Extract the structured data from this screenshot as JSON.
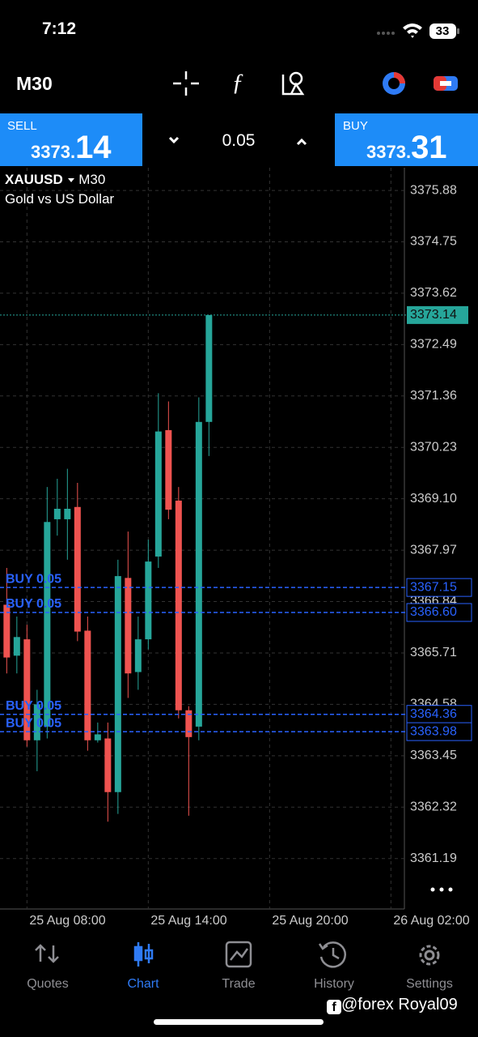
{
  "status_bar": {
    "time": "7:12",
    "battery": "33"
  },
  "toolbar": {
    "timeframe": "M30"
  },
  "trade_bar": {
    "sell_label": "SELL",
    "sell_price_main": "3373.",
    "sell_price_big": "14",
    "lot": "0.05",
    "buy_label": "BUY",
    "buy_price_main": "3373.",
    "buy_price_big": "31"
  },
  "chart_data": {
    "type": "candlestick",
    "symbol": "XAUUSD",
    "timeframe": "M30",
    "description": "Gold vs US Dollar",
    "x": [
      "25 Aug 07:00",
      "25 Aug 07:30",
      "25 Aug 08:00",
      "25 Aug 08:30",
      "25 Aug 09:00",
      "25 Aug 09:30",
      "25 Aug 10:00",
      "25 Aug 10:30",
      "25 Aug 11:00",
      "25 Aug 11:30",
      "25 Aug 12:00",
      "25 Aug 12:30",
      "25 Aug 13:00",
      "25 Aug 13:30",
      "25 Aug 14:00",
      "25 Aug 14:30",
      "25 Aug 15:00",
      "25 Aug 15:30",
      "25 Aug 16:00",
      "25 Aug 16:30",
      "25 Aug 17:00"
    ],
    "open": [
      3366.77,
      3365.65,
      3366.01,
      3363.79,
      3364.09,
      3368.65,
      3368.65,
      3368.92,
      3366.2,
      3363.79,
      3363.83,
      3362.65,
      3367.36,
      3365.29,
      3366.01,
      3367.83,
      3370.61,
      3369.06,
      3364.45,
      3364.09,
      3370.79
    ],
    "high": [
      3367.58,
      3366.51,
      3366.33,
      3364.9,
      3369.36,
      3369.54,
      3369.76,
      3369.45,
      3366.51,
      3364.18,
      3364.18,
      3367.76,
      3368.38,
      3366.51,
      3368.2,
      3371.42,
      3371.24,
      3369.36,
      3364.54,
      3371.33,
      3373.14
    ],
    "low": [
      3365.26,
      3365.26,
      3363.65,
      3363.11,
      3363.83,
      3368.29,
      3367.76,
      3365.97,
      3363.56,
      3363.74,
      3362.0,
      3362.17,
      3364.72,
      3364.9,
      3365.79,
      3367.58,
      3368.65,
      3364.27,
      3362.13,
      3363.79,
      3370.04
    ],
    "close": [
      3365.61,
      3366.06,
      3363.79,
      3364.58,
      3368.59,
      3368.88,
      3368.88,
      3366.18,
      3363.79,
      3363.92,
      3362.65,
      3367.4,
      3365.26,
      3366.01,
      3367.72,
      3370.58,
      3368.86,
      3364.45,
      3363.86,
      3370.79,
      3373.14
    ],
    "up_color": "#26a69a",
    "down_color": "#ef5350",
    "xlim": [
      "25 Aug 06:40",
      "26 Aug 02:40"
    ],
    "xticks": [
      "25 Aug 08:00",
      "25 Aug 14:00",
      "25 Aug 20:00",
      "26 Aug 02:00"
    ],
    "ylim": [
      3360.08,
      3376.38
    ],
    "yticks": [
      3361.19,
      3362.32,
      3363.45,
      3364.58,
      3365.71,
      3366.84,
      3367.97,
      {
        "value": 3369.1,
        "label": "3369.10"
      },
      3370.23,
      3371.36,
      3372.49,
      3373.62,
      3374.75,
      3375.88
    ],
    "grid": true,
    "current_price": 3373.14,
    "order_lines": [
      {
        "label": "BUY 0.05",
        "price": 3367.15
      },
      {
        "label": "BUY 0.05",
        "price": {
          "value": 3366.6,
          "label": "3366.60"
        }
      },
      {
        "label": "BUY 0.05",
        "price": 3364.36
      },
      {
        "label": "BUY 0.05",
        "price": 3363.98
      }
    ]
  },
  "nav": {
    "items": [
      "Quotes",
      "Chart",
      "Trade",
      "History",
      "Settings"
    ],
    "active": "Chart"
  },
  "watermark": "@forex Royal09"
}
